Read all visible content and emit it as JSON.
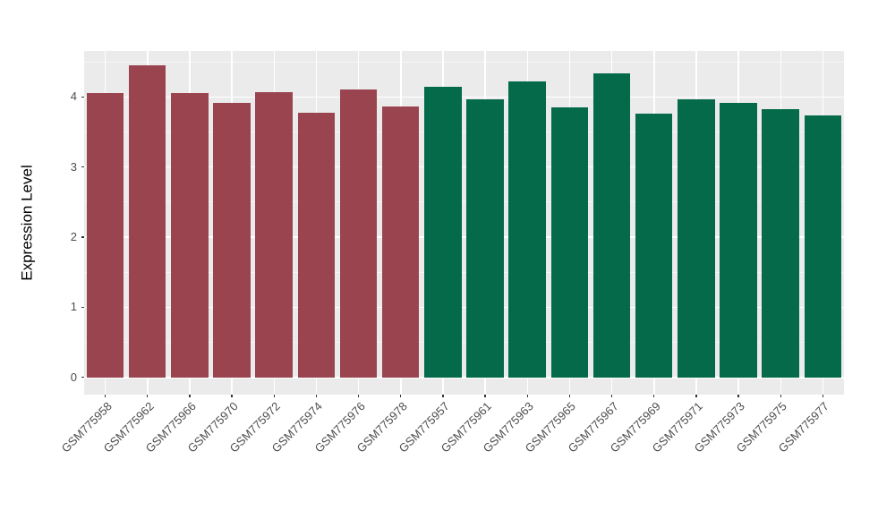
{
  "chart_data": {
    "type": "bar",
    "title": "",
    "xlabel": "",
    "ylabel": "Expression Level",
    "legend_position": "none",
    "grid": true,
    "panel_bg": "#EBEBEB",
    "grid_color": "#FFFFFF",
    "tick_mark_color": "#333333",
    "tick_label_color": "#4D4D4D",
    "ylim": [
      -0.245,
      4.655
    ],
    "yticks": [
      0,
      1,
      2,
      3,
      4
    ],
    "minor_yticks": [
      0.5,
      1.5,
      2.5,
      3.5,
      4.5
    ],
    "colors": {
      "maroon": "#9A4450",
      "green": "#046A4A"
    },
    "categories": [
      "GSM775958",
      "GSM775962",
      "GSM775966",
      "GSM775970",
      "GSM775972",
      "GSM775974",
      "GSM775976",
      "GSM775978",
      "GSM775957",
      "GSM775961",
      "GSM775963",
      "GSM775965",
      "GSM775967",
      "GSM775969",
      "GSM775971",
      "GSM775973",
      "GSM775975",
      "GSM775977"
    ],
    "values": [
      4.06,
      4.45,
      4.05,
      3.92,
      4.07,
      3.78,
      4.11,
      3.87,
      4.15,
      3.96,
      4.22,
      3.85,
      4.34,
      3.76,
      3.96,
      3.91,
      3.83,
      3.74
    ],
    "bar_color_keys": [
      "maroon",
      "maroon",
      "maroon",
      "maroon",
      "maroon",
      "maroon",
      "maroon",
      "maroon",
      "green",
      "green",
      "green",
      "green",
      "green",
      "green",
      "green",
      "green",
      "green",
      "green"
    ]
  }
}
